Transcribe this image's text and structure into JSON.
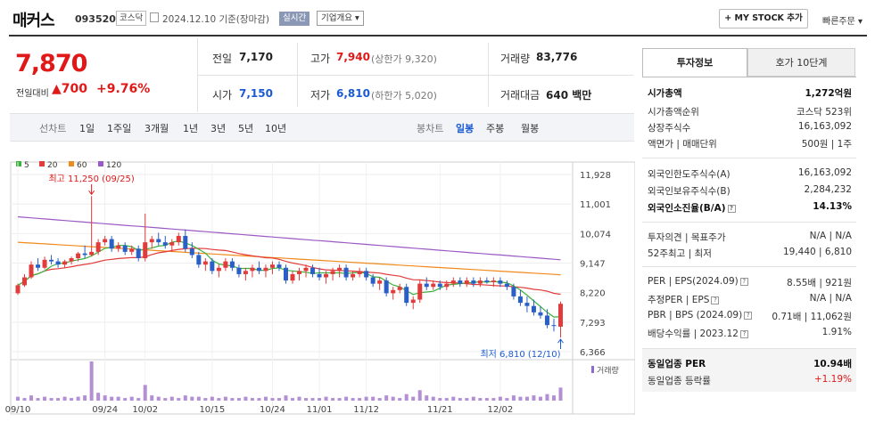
{
  "header": {
    "name": "매커스",
    "code": "093520",
    "market": "코스닥",
    "date": "2024.12.10 기준(장마감)",
    "realtime": "실시간",
    "corp_info": "기업개요 ▾",
    "my_stock": "+ MY STOCK 추가",
    "quick_order": "빠른주문 ▾"
  },
  "price": {
    "current": "7,870",
    "change_label": "전일대비",
    "change": "▲700",
    "change_pct": "+9.76%"
  },
  "summary": {
    "prev_label": "전일",
    "prev": "7,170",
    "high_label": "고가",
    "high": "7,940",
    "high_limit": "(상한가 9,320)",
    "volume_label": "거래량",
    "volume": "83,776",
    "open_label": "시가",
    "open": "7,150",
    "low_label": "저가",
    "low": "6,810",
    "low_limit": "(하한가 5,020)",
    "amount_label": "거래대금",
    "amount": "640 백만"
  },
  "periods": {
    "line_label": "선차트",
    "line_items": [
      "1일",
      "1주일",
      "3개월",
      "1년",
      "3년",
      "5년",
      "10년"
    ],
    "candle_label": "봉차트",
    "candle_items": [
      "일봉",
      "주봉",
      "월봉"
    ],
    "candle_selected": "일봉"
  },
  "tabs": {
    "active": "투자정보",
    "inactive": "호가 10단계"
  },
  "invest": {
    "market_cap_label": "시가총액",
    "market_cap": "1,272억원",
    "rank_label": "시가총액순위",
    "rank": "코스닥 523위",
    "shares_label": "상장주식수",
    "shares": "16,163,092",
    "par_label": "액면가 | 매매단위",
    "par": "500원 | 1주",
    "foreign_limit_label": "외국인한도주식수(A)",
    "foreign_limit": "16,163,092",
    "foreign_hold_label": "외국인보유주식수(B)",
    "foreign_hold": "2,284,232",
    "foreign_ratio_label": "외국인소진율(B/A)",
    "foreign_ratio": "14.13%",
    "opinion_label": "투자의견 | 목표주가",
    "opinion": "N/A | N/A",
    "w52_label": "52주최고 | 최저",
    "w52": "19,440 | 6,810",
    "per_label": "PER | EPS(2024.09)",
    "per": "8.55배 | 921원",
    "est_label": "추정PER | EPS",
    "est": "N/A | N/A",
    "pbr_label": "PBR | BPS (2024.09)",
    "pbr": "0.71배 | 11,062원",
    "div_label": "배당수익률 | 2023.12",
    "div": "1.91%",
    "ind_per_label": "동일업종 PER",
    "ind_per": "10.94배",
    "ind_chg_label": "동일업종 등락률",
    "ind_chg": "+1.19%"
  },
  "chart_data": {
    "type": "candlestick",
    "legend": [
      {
        "name": "5",
        "color": "#3bb33b"
      },
      {
        "name": "20",
        "color": "#e23b3b"
      },
      {
        "name": "60",
        "color": "#f08a1c"
      },
      {
        "name": "120",
        "color": "#9b59c4"
      }
    ],
    "y_ticks": [
      "11,928",
      "11,001",
      "10,074",
      "9,147",
      "8,220",
      "7,293",
      "6,366"
    ],
    "x_ticks": [
      "09/10",
      "09/24",
      "10/02",
      "10/15",
      "10/24",
      "11/01",
      "11/12",
      "11/21",
      "12/02"
    ],
    "max_label": "최고 11,250 (09/25)",
    "min_label": "최저 6,810 (12/10)",
    "volume_label": "거래량",
    "ylim": [
      6366,
      11928
    ],
    "candles": [
      [
        8200,
        8500,
        8150,
        8450
      ],
      [
        8450,
        8800,
        8400,
        8700
      ],
      [
        8700,
        9200,
        8650,
        9100
      ],
      [
        9100,
        9300,
        8900,
        9000
      ],
      [
        9000,
        9350,
        8950,
        9250
      ],
      [
        9250,
        9400,
        9100,
        9200
      ],
      [
        9200,
        9300,
        9000,
        9100
      ],
      [
        9100,
        9250,
        9000,
        9200
      ],
      [
        9200,
        9350,
        9100,
        9300
      ],
      [
        9300,
        9500,
        9200,
        9450
      ],
      [
        9450,
        9700,
        9300,
        9400
      ],
      [
        9400,
        11250,
        9350,
        9500
      ],
      [
        9500,
        9900,
        9400,
        9800
      ],
      [
        9800,
        10000,
        9700,
        9900
      ],
      [
        9900,
        10000,
        9500,
        9600
      ],
      [
        9600,
        9800,
        9500,
        9700
      ],
      [
        9700,
        9800,
        9400,
        9500
      ],
      [
        9500,
        9700,
        9400,
        9600
      ],
      [
        9600,
        9700,
        9200,
        9300
      ],
      [
        9300,
        10700,
        9200,
        9800
      ],
      [
        9800,
        10000,
        9600,
        9900
      ],
      [
        9900,
        10100,
        9700,
        9800
      ],
      [
        9800,
        10000,
        9600,
        9700
      ],
      [
        9700,
        9900,
        9500,
        9800
      ],
      [
        9800,
        10100,
        9700,
        10000
      ],
      [
        10000,
        10200,
        9500,
        9600
      ],
      [
        9600,
        9800,
        9300,
        9400
      ],
      [
        9400,
        9500,
        9000,
        9100
      ],
      [
        9100,
        9300,
        8900,
        9200
      ],
      [
        9200,
        9300,
        8800,
        8900
      ],
      [
        8900,
        9100,
        8700,
        9000
      ],
      [
        9000,
        9300,
        8900,
        9200
      ],
      [
        9200,
        9300,
        8900,
        9000
      ],
      [
        9000,
        9100,
        8700,
        8800
      ],
      [
        8800,
        9000,
        8600,
        8900
      ],
      [
        8900,
        9100,
        8700,
        9000
      ],
      [
        9000,
        9200,
        8800,
        8900
      ],
      [
        8900,
        9100,
        8700,
        9000
      ],
      [
        9000,
        9200,
        8800,
        9100
      ],
      [
        9100,
        9200,
        8900,
        9000
      ],
      [
        9000,
        9100,
        8500,
        8600
      ],
      [
        8600,
        8900,
        8500,
        8800
      ],
      [
        8800,
        9000,
        8600,
        8900
      ],
      [
        8900,
        9100,
        8700,
        9000
      ],
      [
        9000,
        9100,
        8700,
        8800
      ],
      [
        8800,
        9000,
        8600,
        8700
      ],
      [
        8700,
        8900,
        8500,
        8800
      ],
      [
        8800,
        9000,
        8600,
        8900
      ],
      [
        8900,
        9100,
        8700,
        9000
      ],
      [
        9000,
        9100,
        8600,
        8700
      ],
      [
        8700,
        8900,
        8600,
        8800
      ],
      [
        8800,
        9000,
        8700,
        8900
      ],
      [
        8900,
        9000,
        8600,
        8700
      ],
      [
        8700,
        8800,
        8400,
        8500
      ],
      [
        8500,
        8700,
        8300,
        8600
      ],
      [
        8600,
        8700,
        8100,
        8200
      ],
      [
        8200,
        8400,
        8000,
        8300
      ],
      [
        8300,
        8500,
        8200,
        8400
      ],
      [
        8400,
        8500,
        7800,
        7900
      ],
      [
        7900,
        8100,
        7700,
        8000
      ],
      [
        8000,
        8600,
        7900,
        8500
      ],
      [
        8500,
        8700,
        8300,
        8400
      ],
      [
        8400,
        8600,
        8300,
        8500
      ],
      [
        8500,
        8600,
        8300,
        8400
      ],
      [
        8400,
        8600,
        8300,
        8500
      ],
      [
        8500,
        8700,
        8400,
        8600
      ],
      [
        8600,
        8700,
        8400,
        8500
      ],
      [
        8500,
        8700,
        8400,
        8600
      ],
      [
        8600,
        8700,
        8400,
        8500
      ],
      [
        8500,
        8700,
        8400,
        8600
      ],
      [
        8600,
        8700,
        8500,
        8550
      ],
      [
        8550,
        8700,
        8400,
        8600
      ],
      [
        8600,
        8700,
        8400,
        8500
      ],
      [
        8500,
        8600,
        8300,
        8400
      ],
      [
        8400,
        8500,
        8000,
        8100
      ],
      [
        8100,
        8300,
        7800,
        7900
      ],
      [
        7900,
        8100,
        7600,
        7800
      ],
      [
        7800,
        8000,
        7500,
        7600
      ],
      [
        7600,
        7800,
        7400,
        7500
      ],
      [
        7500,
        7700,
        7100,
        7200
      ],
      [
        7200,
        7400,
        7000,
        7170
      ],
      [
        7150,
        7940,
        6810,
        7870
      ]
    ],
    "volume": [
      3,
      2,
      4,
      2,
      3,
      2,
      2,
      3,
      2,
      3,
      4,
      30,
      6,
      4,
      3,
      3,
      2,
      3,
      2,
      12,
      4,
      3,
      2,
      3,
      2,
      4,
      3,
      3,
      2,
      3,
      2,
      3,
      2,
      2,
      3,
      2,
      2,
      3,
      2,
      2,
      4,
      2,
      3,
      2,
      2,
      2,
      3,
      2,
      2,
      3,
      2,
      2,
      3,
      3,
      2,
      4,
      3,
      2,
      5,
      3,
      8,
      4,
      3,
      2,
      2,
      3,
      2,
      2,
      3,
      2,
      2,
      2,
      3,
      2,
      4,
      3,
      3,
      4,
      3,
      5,
      4,
      10
    ]
  }
}
